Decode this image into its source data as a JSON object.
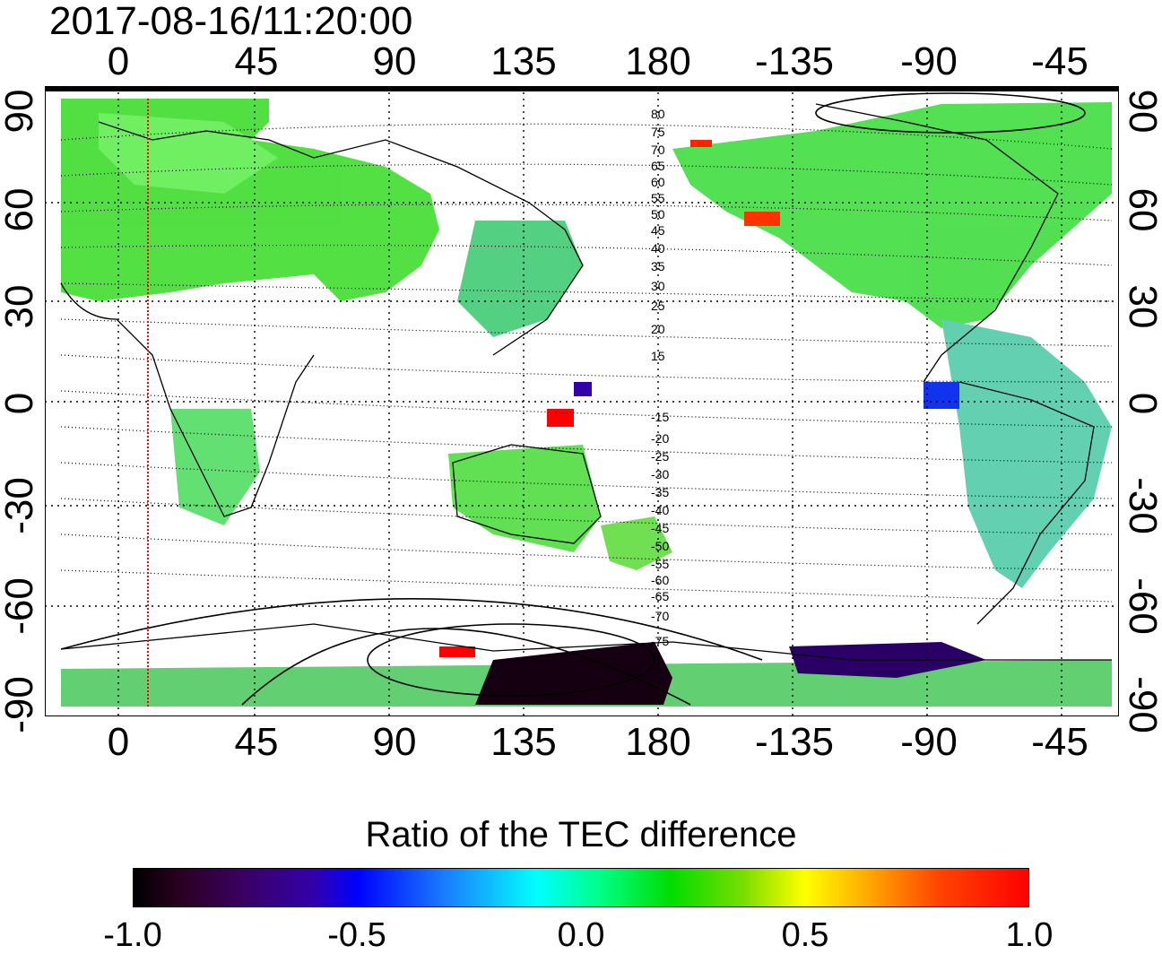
{
  "timestamp": "2017-08-16/11:20:00",
  "top_ticks": [
    "0",
    "45",
    "90",
    "135",
    "180",
    "-135",
    "-90",
    "-45"
  ],
  "bottom_ticks": [
    "0",
    "45",
    "90",
    "135",
    "180",
    "-135",
    "-90",
    "-45"
  ],
  "left_ticks": [
    "90",
    "60",
    "30",
    "0",
    "-30",
    "-60",
    "-90"
  ],
  "right_ticks": [
    "90",
    "60",
    "30",
    "0",
    "-30",
    "-60",
    "-90"
  ],
  "contour_labels": [
    "80",
    "75",
    "70",
    "65",
    "60",
    "55",
    "50",
    "45",
    "40",
    "35",
    "30",
    "25",
    "20",
    "15",
    "-15",
    "-20",
    "-25",
    "-30",
    "-35",
    "-40",
    "-45",
    "-50",
    "-55",
    "-60",
    "-65",
    "-70",
    "-75"
  ],
  "colorbar": {
    "title": "Ratio of the TEC difference",
    "labels": [
      "-1.0",
      "-0.5",
      "0.0",
      "0.5",
      "1.0"
    ],
    "min": -1.0,
    "max": 1.0
  },
  "colors": {
    "marker_line": "#ff0000",
    "contour": "#000000",
    "grid": "#000000"
  }
}
